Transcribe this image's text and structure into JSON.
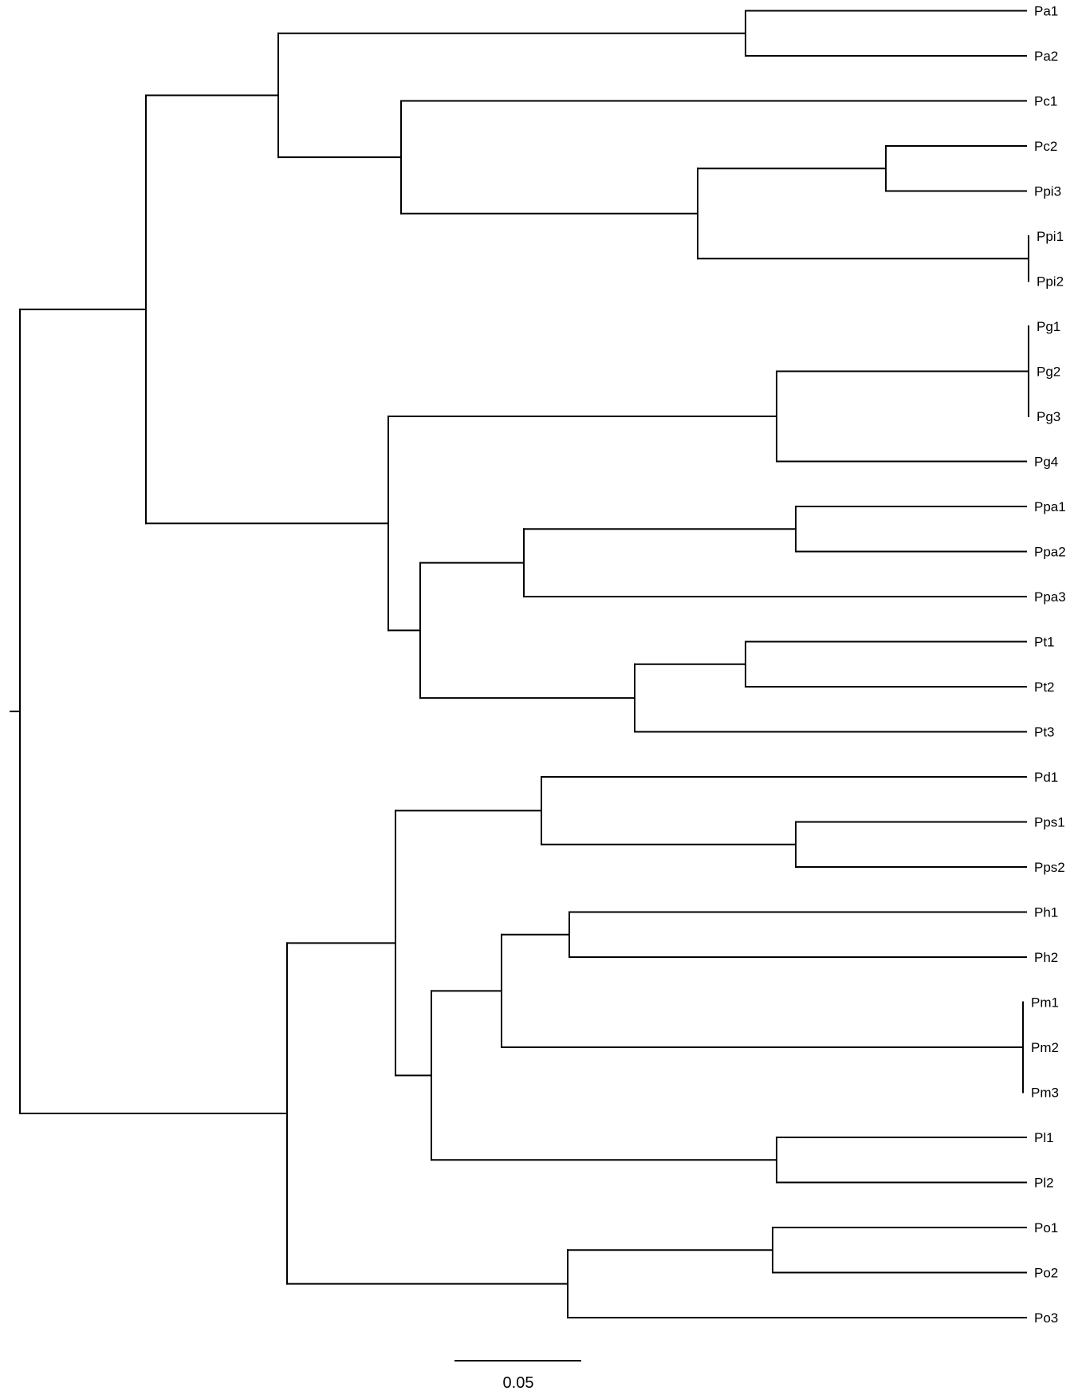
{
  "tree": {
    "taxa": [
      "Pa1",
      "Pa2",
      "Pc1",
      "Pc2",
      "Ppi3",
      "Ppi1",
      "Ppi2",
      "Pg1",
      "Pg2",
      "Pg3",
      "Pg4",
      "Ppa1",
      "Ppa2",
      "Ppa3",
      "Pt1",
      "Pt2",
      "Pt3",
      "Pd1",
      "Pps1",
      "Pps2",
      "Ph1",
      "Ph2",
      "Pm1",
      "Pm2",
      "Pm3",
      "Pl1",
      "Pl2",
      "Po1",
      "Po2",
      "Po3"
    ],
    "newick_topology": "(((((Pa1,Pa2),(Pc1,((Pc2,Ppi3),(Ppi1,Ppi2)))),(((Pg1,Pg2,Pg3),Pg4),(((Ppa1,Ppa2),Ppa3),((Pt1,Pt2),Pt3))))),((((Pd1,(Pps1,Pps2)),(((Ph1,Ph2),(Pm1,Pm2,Pm3)),(Pl1,Pl2))),((Po1,Po2),Po3))));",
    "scale_bar": {
      "label": "0.05",
      "length": 0.05
    }
  }
}
